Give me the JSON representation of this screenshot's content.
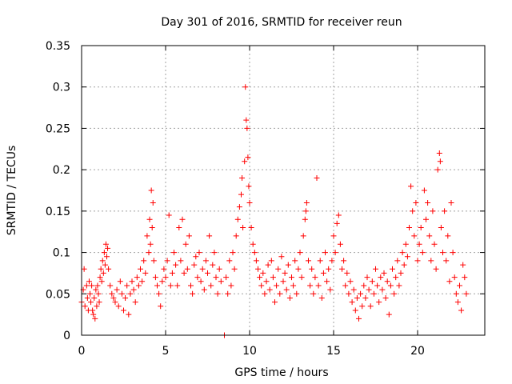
{
  "chart_data": {
    "type": "scatter",
    "title": "Day 301 of 2016, SRMTID for receiver reun",
    "xlabel": "GPS time / hours",
    "ylabel": "SRMTID / TECUs",
    "xlim": [
      0,
      24
    ],
    "ylim": [
      0,
      0.35
    ],
    "xticks": [
      0,
      5,
      10,
      15,
      20
    ],
    "xtick_labels": [
      "0",
      "5",
      "10",
      "15",
      "20"
    ],
    "yticks": [
      0,
      0.05,
      0.1,
      0.15,
      0.2,
      0.25,
      0.3,
      0.35
    ],
    "ytick_labels": [
      "0",
      "0.05",
      "0.1",
      "0.15",
      "0.2",
      "0.25",
      "0.3",
      "0.35"
    ],
    "grid": true,
    "marker": "+",
    "color": "#ff0000",
    "series": [
      {
        "name": "SRMTID",
        "points": [
          [
            0.0,
            0.04
          ],
          [
            0.1,
            0.055
          ],
          [
            0.15,
            0.08
          ],
          [
            0.2,
            0.035
          ],
          [
            0.3,
            0.06
          ],
          [
            0.35,
            0.045
          ],
          [
            0.4,
            0.03
          ],
          [
            0.45,
            0.065
          ],
          [
            0.5,
            0.05
          ],
          [
            0.55,
            0.04
          ],
          [
            0.6,
            0.06
          ],
          [
            0.65,
            0.03
          ],
          [
            0.7,
            0.025
          ],
          [
            0.75,
            0.045
          ],
          [
            0.8,
            0.02
          ],
          [
            0.85,
            0.055
          ],
          [
            0.9,
            0.035
          ],
          [
            0.95,
            0.06
          ],
          [
            1.0,
            0.05
          ],
          [
            1.05,
            0.04
          ],
          [
            1.1,
            0.07
          ],
          [
            1.15,
            0.08
          ],
          [
            1.2,
            0.065
          ],
          [
            1.25,
            0.09
          ],
          [
            1.3,
            0.075
          ],
          [
            1.35,
            0.1
          ],
          [
            1.4,
            0.085
          ],
          [
            1.45,
            0.11
          ],
          [
            1.5,
            0.095
          ],
          [
            1.55,
            0.105
          ],
          [
            1.6,
            0.08
          ],
          [
            1.7,
            0.06
          ],
          [
            1.8,
            0.05
          ],
          [
            1.9,
            0.045
          ],
          [
            2.0,
            0.04
          ],
          [
            2.1,
            0.055
          ],
          [
            2.2,
            0.035
          ],
          [
            2.3,
            0.065
          ],
          [
            2.4,
            0.05
          ],
          [
            2.5,
            0.03
          ],
          [
            2.6,
            0.045
          ],
          [
            2.7,
            0.06
          ],
          [
            2.8,
            0.025
          ],
          [
            2.9,
            0.05
          ],
          [
            3.0,
            0.065
          ],
          [
            3.1,
            0.055
          ],
          [
            3.2,
            0.04
          ],
          [
            3.3,
            0.07
          ],
          [
            3.4,
            0.06
          ],
          [
            3.5,
            0.08
          ],
          [
            3.6,
            0.065
          ],
          [
            3.7,
            0.09
          ],
          [
            3.8,
            0.075
          ],
          [
            3.9,
            0.12
          ],
          [
            4.0,
            0.1
          ],
          [
            4.05,
            0.14
          ],
          [
            4.1,
            0.11
          ],
          [
            4.15,
            0.175
          ],
          [
            4.2,
            0.13
          ],
          [
            4.25,
            0.16
          ],
          [
            4.3,
            0.09
          ],
          [
            4.4,
            0.07
          ],
          [
            4.5,
            0.06
          ],
          [
            4.6,
            0.05
          ],
          [
            4.7,
            0.035
          ],
          [
            4.8,
            0.065
          ],
          [
            4.9,
            0.08
          ],
          [
            5.0,
            0.07
          ],
          [
            5.1,
            0.09
          ],
          [
            5.2,
            0.145
          ],
          [
            5.3,
            0.06
          ],
          [
            5.4,
            0.075
          ],
          [
            5.5,
            0.1
          ],
          [
            5.6,
            0.085
          ],
          [
            5.7,
            0.06
          ],
          [
            5.8,
            0.13
          ],
          [
            5.9,
            0.09
          ],
          [
            6.0,
            0.14
          ],
          [
            6.1,
            0.075
          ],
          [
            6.2,
            0.11
          ],
          [
            6.3,
            0.08
          ],
          [
            6.4,
            0.12
          ],
          [
            6.5,
            0.06
          ],
          [
            6.6,
            0.05
          ],
          [
            6.7,
            0.085
          ],
          [
            6.8,
            0.095
          ],
          [
            6.9,
            0.07
          ],
          [
            7.0,
            0.1
          ],
          [
            7.1,
            0.065
          ],
          [
            7.2,
            0.08
          ],
          [
            7.3,
            0.055
          ],
          [
            7.4,
            0.09
          ],
          [
            7.5,
            0.075
          ],
          [
            7.6,
            0.12
          ],
          [
            7.7,
            0.06
          ],
          [
            7.8,
            0.085
          ],
          [
            7.9,
            0.1
          ],
          [
            8.0,
            0.07
          ],
          [
            8.1,
            0.05
          ],
          [
            8.2,
            0.08
          ],
          [
            8.3,
            0.065
          ],
          [
            8.5,
            0.0
          ],
          [
            8.6,
            0.07
          ],
          [
            8.7,
            0.05
          ],
          [
            8.8,
            0.09
          ],
          [
            8.9,
            0.06
          ],
          [
            9.0,
            0.1
          ],
          [
            9.1,
            0.08
          ],
          [
            9.2,
            0.12
          ],
          [
            9.3,
            0.14
          ],
          [
            9.4,
            0.155
          ],
          [
            9.5,
            0.17
          ],
          [
            9.55,
            0.19
          ],
          [
            9.6,
            0.13
          ],
          [
            9.7,
            0.21
          ],
          [
            9.75,
            0.3
          ],
          [
            9.8,
            0.26
          ],
          [
            9.85,
            0.25
          ],
          [
            9.9,
            0.215
          ],
          [
            9.95,
            0.18
          ],
          [
            10.0,
            0.16
          ],
          [
            10.1,
            0.13
          ],
          [
            10.2,
            0.11
          ],
          [
            10.3,
            0.1
          ],
          [
            10.4,
            0.09
          ],
          [
            10.5,
            0.08
          ],
          [
            10.6,
            0.07
          ],
          [
            10.7,
            0.06
          ],
          [
            10.8,
            0.075
          ],
          [
            10.9,
            0.05
          ],
          [
            11.0,
            0.065
          ],
          [
            11.1,
            0.085
          ],
          [
            11.2,
            0.055
          ],
          [
            11.3,
            0.09
          ],
          [
            11.4,
            0.07
          ],
          [
            11.5,
            0.04
          ],
          [
            11.6,
            0.06
          ],
          [
            11.7,
            0.08
          ],
          [
            11.8,
            0.05
          ],
          [
            11.9,
            0.095
          ],
          [
            12.0,
            0.065
          ],
          [
            12.1,
            0.075
          ],
          [
            12.2,
            0.055
          ],
          [
            12.3,
            0.085
          ],
          [
            12.4,
            0.045
          ],
          [
            12.5,
            0.07
          ],
          [
            12.6,
            0.06
          ],
          [
            12.7,
            0.09
          ],
          [
            12.8,
            0.05
          ],
          [
            12.9,
            0.08
          ],
          [
            13.0,
            0.1
          ],
          [
            13.1,
            0.07
          ],
          [
            13.2,
            0.12
          ],
          [
            13.3,
            0.14
          ],
          [
            13.35,
            0.15
          ],
          [
            13.4,
            0.16
          ],
          [
            13.5,
            0.09
          ],
          [
            13.6,
            0.06
          ],
          [
            13.7,
            0.08
          ],
          [
            13.8,
            0.05
          ],
          [
            13.9,
            0.07
          ],
          [
            14.0,
            0.19
          ],
          [
            14.1,
            0.06
          ],
          [
            14.2,
            0.09
          ],
          [
            14.3,
            0.045
          ],
          [
            14.4,
            0.075
          ],
          [
            14.5,
            0.1
          ],
          [
            14.6,
            0.065
          ],
          [
            14.7,
            0.08
          ],
          [
            14.8,
            0.055
          ],
          [
            14.9,
            0.09
          ],
          [
            15.0,
            0.12
          ],
          [
            15.1,
            0.1
          ],
          [
            15.2,
            0.135
          ],
          [
            15.3,
            0.145
          ],
          [
            15.4,
            0.11
          ],
          [
            15.5,
            0.08
          ],
          [
            15.6,
            0.09
          ],
          [
            15.7,
            0.06
          ],
          [
            15.8,
            0.075
          ],
          [
            15.9,
            0.05
          ],
          [
            16.0,
            0.065
          ],
          [
            16.1,
            0.04
          ],
          [
            16.2,
            0.055
          ],
          [
            16.3,
            0.03
          ],
          [
            16.4,
            0.045
          ],
          [
            16.5,
            0.02
          ],
          [
            16.6,
            0.05
          ],
          [
            16.7,
            0.035
          ],
          [
            16.8,
            0.06
          ],
          [
            16.9,
            0.045
          ],
          [
            17.0,
            0.07
          ],
          [
            17.1,
            0.055
          ],
          [
            17.2,
            0.035
          ],
          [
            17.3,
            0.065
          ],
          [
            17.4,
            0.05
          ],
          [
            17.5,
            0.08
          ],
          [
            17.6,
            0.06
          ],
          [
            17.7,
            0.04
          ],
          [
            17.8,
            0.07
          ],
          [
            17.9,
            0.055
          ],
          [
            18.0,
            0.075
          ],
          [
            18.1,
            0.045
          ],
          [
            18.2,
            0.065
          ],
          [
            18.3,
            0.025
          ],
          [
            18.4,
            0.06
          ],
          [
            18.5,
            0.08
          ],
          [
            18.6,
            0.05
          ],
          [
            18.7,
            0.07
          ],
          [
            18.8,
            0.09
          ],
          [
            18.9,
            0.06
          ],
          [
            19.0,
            0.075
          ],
          [
            19.1,
            0.1
          ],
          [
            19.2,
            0.085
          ],
          [
            19.3,
            0.11
          ],
          [
            19.4,
            0.095
          ],
          [
            19.5,
            0.13
          ],
          [
            19.6,
            0.18
          ],
          [
            19.7,
            0.15
          ],
          [
            19.8,
            0.12
          ],
          [
            19.9,
            0.16
          ],
          [
            20.0,
            0.09
          ],
          [
            20.1,
            0.11
          ],
          [
            20.2,
            0.13
          ],
          [
            20.3,
            0.1
          ],
          [
            20.4,
            0.175
          ],
          [
            20.5,
            0.14
          ],
          [
            20.6,
            0.16
          ],
          [
            20.7,
            0.12
          ],
          [
            20.8,
            0.09
          ],
          [
            20.9,
            0.15
          ],
          [
            21.0,
            0.11
          ],
          [
            21.1,
            0.08
          ],
          [
            21.2,
            0.2
          ],
          [
            21.3,
            0.22
          ],
          [
            21.35,
            0.21
          ],
          [
            21.4,
            0.13
          ],
          [
            21.5,
            0.1
          ],
          [
            21.6,
            0.15
          ],
          [
            21.7,
            0.09
          ],
          [
            21.8,
            0.12
          ],
          [
            21.9,
            0.065
          ],
          [
            22.0,
            0.16
          ],
          [
            22.1,
            0.1
          ],
          [
            22.2,
            0.07
          ],
          [
            22.3,
            0.05
          ],
          [
            22.4,
            0.04
          ],
          [
            22.5,
            0.06
          ],
          [
            22.6,
            0.03
          ],
          [
            22.7,
            0.085
          ],
          [
            22.8,
            0.07
          ],
          [
            22.9,
            0.05
          ]
        ]
      }
    ]
  }
}
